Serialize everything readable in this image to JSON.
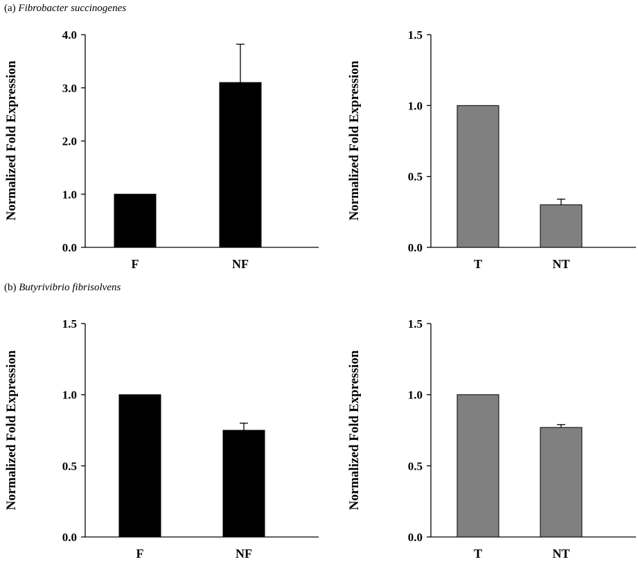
{
  "panel_labels": {
    "a": {
      "prefix": "(a)",
      "species": "Fibrobacter succinogenes"
    },
    "b": {
      "prefix": "(b)",
      "species": "Butyrivibrio fibrisolvens"
    }
  },
  "chart_data": [
    {
      "type": "bar",
      "panel": "a-left",
      "categories": [
        "F",
        "NF"
      ],
      "values": [
        1.0,
        3.1
      ],
      "errors": [
        0.0,
        0.72
      ],
      "bar_color": "#000000",
      "ylabel": "Normalized Fold Expression",
      "xlabel": "",
      "ylim": [
        0,
        4.0
      ],
      "yticks": [
        "0.0",
        "1.0",
        "2.0",
        "3.0",
        "4.0"
      ]
    },
    {
      "type": "bar",
      "panel": "a-right",
      "categories": [
        "T",
        "NT"
      ],
      "values": [
        1.0,
        0.3
      ],
      "errors": [
        0.0,
        0.04
      ],
      "bar_color": "#808080",
      "ylabel": "Normalized Fold Expression",
      "xlabel": "",
      "ylim": [
        0,
        1.5
      ],
      "yticks": [
        "0.0",
        "0.5",
        "1.0",
        "1.5"
      ]
    },
    {
      "type": "bar",
      "panel": "b-left",
      "categories": [
        "F",
        "NF"
      ],
      "values": [
        1.0,
        0.75
      ],
      "errors": [
        0.0,
        0.05
      ],
      "bar_color": "#000000",
      "ylabel": "Normalized Fold Expression",
      "xlabel": "",
      "ylim": [
        0,
        1.5
      ],
      "yticks": [
        "0.0",
        "0.5",
        "1.0",
        "1.5"
      ]
    },
    {
      "type": "bar",
      "panel": "b-right",
      "categories": [
        "T",
        "NT"
      ],
      "values": [
        1.0,
        0.77
      ],
      "errors": [
        0.0,
        0.02
      ],
      "bar_color": "#808080",
      "ylabel": "Normalized Fold Expression",
      "xlabel": "",
      "ylim": [
        0,
        1.5
      ],
      "yticks": [
        "0.0",
        "0.5",
        "1.0",
        "1.5"
      ]
    }
  ]
}
